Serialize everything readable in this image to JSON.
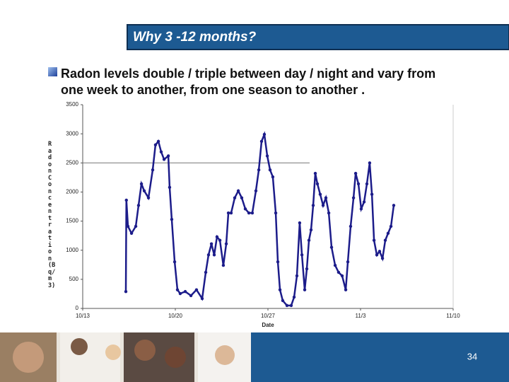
{
  "title": "Why 3 -12 months?",
  "bullet": "Radon levels double / triple between day / night and vary from one week to another, from one season to another .",
  "page_number": "34",
  "chart_data": {
    "type": "line",
    "x_label": "Date",
    "y_label": "Radon Concentration (Bq/m3)",
    "xlim": [
      0,
      28
    ],
    "xticks": [
      {
        "value": 0,
        "label": "10/13"
      },
      {
        "value": 7,
        "label": "10/20"
      },
      {
        "value": 14,
        "label": "10/27"
      },
      {
        "value": 21,
        "label": "11/3"
      },
      {
        "value": 28,
        "label": "11/10"
      }
    ],
    "ylim": [
      0,
      3500
    ],
    "yticks": [
      0,
      500,
      1000,
      1500,
      2000,
      2500,
      3000,
      3500
    ],
    "reference_line": {
      "value": 2500,
      "x_end": 17.15
    },
    "series": [
      {
        "color": "#1c1c8a",
        "x": [
          3.26,
          3.3,
          3.42,
          3.69,
          4.01,
          4.22,
          4.44,
          4.65,
          4.97,
          5.29,
          5.5,
          5.72,
          5.93,
          6.15,
          6.47,
          6.57,
          6.73,
          6.95,
          7.16,
          7.37,
          7.75,
          8.18,
          8.6,
          9.03,
          9.3,
          9.51,
          9.73,
          9.94,
          10.15,
          10.37,
          10.63,
          10.85,
          11.01,
          11.22,
          11.49,
          11.76,
          12.02,
          12.29,
          12.56,
          12.82,
          13.09,
          13.31,
          13.52,
          13.73,
          13.95,
          14.16,
          14.37,
          14.59,
          14.75,
          14.91,
          15.12,
          15.44,
          15.76,
          15.98,
          16.19,
          16.4,
          16.57,
          16.78,
          16.94,
          17.1,
          17.26,
          17.42,
          17.58,
          17.74,
          17.95,
          18.17,
          18.38,
          18.6,
          18.81,
          19.08,
          19.34,
          19.61,
          19.88,
          20.04,
          20.25,
          20.47,
          20.63,
          20.84,
          21.05,
          21.27,
          21.48,
          21.69,
          21.86,
          22.02,
          22.23,
          22.44,
          22.66,
          22.87,
          23.08,
          23.3,
          23.51
        ],
        "values": [
          290,
          1860,
          1410,
          1290,
          1410,
          1770,
          2140,
          2020,
          1900,
          2380,
          2810,
          2870,
          2690,
          2560,
          2620,
          2080,
          1530,
          800,
          320,
          255,
          290,
          220,
          320,
          170,
          620,
          920,
          1110,
          920,
          1230,
          1170,
          740,
          1110,
          1640,
          1640,
          1900,
          2020,
          1900,
          1710,
          1640,
          1640,
          2020,
          2380,
          2870,
          2990,
          2620,
          2380,
          2260,
          1640,
          800,
          320,
          135,
          50,
          50,
          195,
          560,
          1470,
          920,
          320,
          680,
          1170,
          1350,
          1770,
          2320,
          2140,
          1960,
          1770,
          1900,
          1640,
          1050,
          740,
          620,
          560,
          320,
          800,
          1410,
          1900,
          2320,
          2140,
          1710,
          1830,
          2140,
          2500,
          1960,
          1170,
          920,
          980,
          860,
          1170,
          1290,
          1410,
          1770
        ]
      }
    ]
  }
}
